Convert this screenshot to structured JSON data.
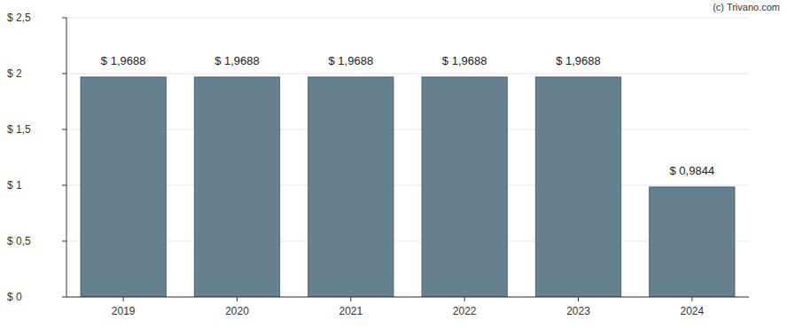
{
  "chart_data": {
    "type": "bar",
    "annotations": [
      "(c) Trivano.com"
    ],
    "categories": [
      "2019",
      "2020",
      "2021",
      "2022",
      "2023",
      "2024"
    ],
    "values": [
      1.9688,
      1.9688,
      1.9688,
      1.9688,
      1.9688,
      0.9844
    ],
    "value_labels": [
      "$ 1,9688",
      "$ 1,9688",
      "$ 1,9688",
      "$ 1,9688",
      "$ 1,9688",
      "$ 0,9844"
    ],
    "data_labels": true,
    "color": "#65808f",
    "ylim": [
      0,
      2.5
    ],
    "yticks": [
      {
        "value": 0,
        "label": "$ 0"
      },
      {
        "value": 0.5,
        "label": "$ 0,5"
      },
      {
        "value": 1,
        "label": "$ 1"
      },
      {
        "value": 1.5,
        "label": "$ 1,5"
      },
      {
        "value": 2,
        "label": "$ 2"
      },
      {
        "value": 2.5,
        "label": "$ 2,5"
      }
    ],
    "grid": true
  }
}
